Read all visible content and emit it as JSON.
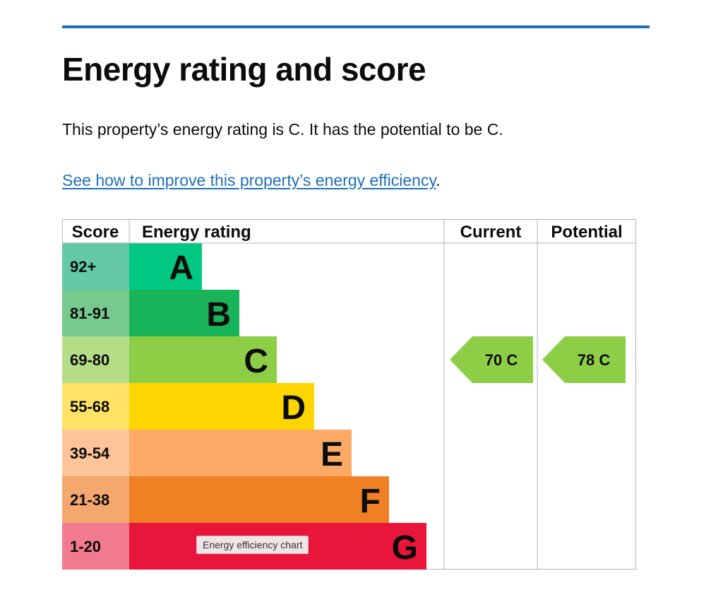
{
  "page": {
    "heading": "Energy rating and score",
    "summary": "This property’s energy rating is C. It has the potential to be C.",
    "improve_link": "See how to improve this property’s energy efficiency",
    "improve_suffix": "."
  },
  "chart_data": {
    "type": "table",
    "columns": [
      "Score",
      "Energy rating",
      "Current",
      "Potential"
    ],
    "bands": [
      {
        "score": "92+",
        "letter": "A",
        "color": "#00c781",
        "score_bg": "#64c9a6"
      },
      {
        "score": "81-91",
        "letter": "B",
        "color": "#19b459",
        "score_bg": "#78c98d"
      },
      {
        "score": "69-80",
        "letter": "C",
        "color": "#8dce46",
        "score_bg": "#b4dd88"
      },
      {
        "score": "55-68",
        "letter": "D",
        "color": "#ffd500",
        "score_bg": "#ffe266"
      },
      {
        "score": "39-54",
        "letter": "E",
        "color": "#fcaa65",
        "score_bg": "#fdc499"
      },
      {
        "score": "21-38",
        "letter": "F",
        "color": "#ef8023",
        "score_bg": "#f4a86e"
      },
      {
        "score": "1-20",
        "letter": "G",
        "color": "#e9153b",
        "score_bg": "#f27a8f"
      }
    ],
    "current": {
      "value": 70,
      "letter": "C",
      "label": "70  C",
      "color": "#8dce46"
    },
    "potential": {
      "value": 78,
      "letter": "C",
      "label": "78  C",
      "color": "#8dce46"
    }
  },
  "tooltip": "Energy efficiency chart"
}
